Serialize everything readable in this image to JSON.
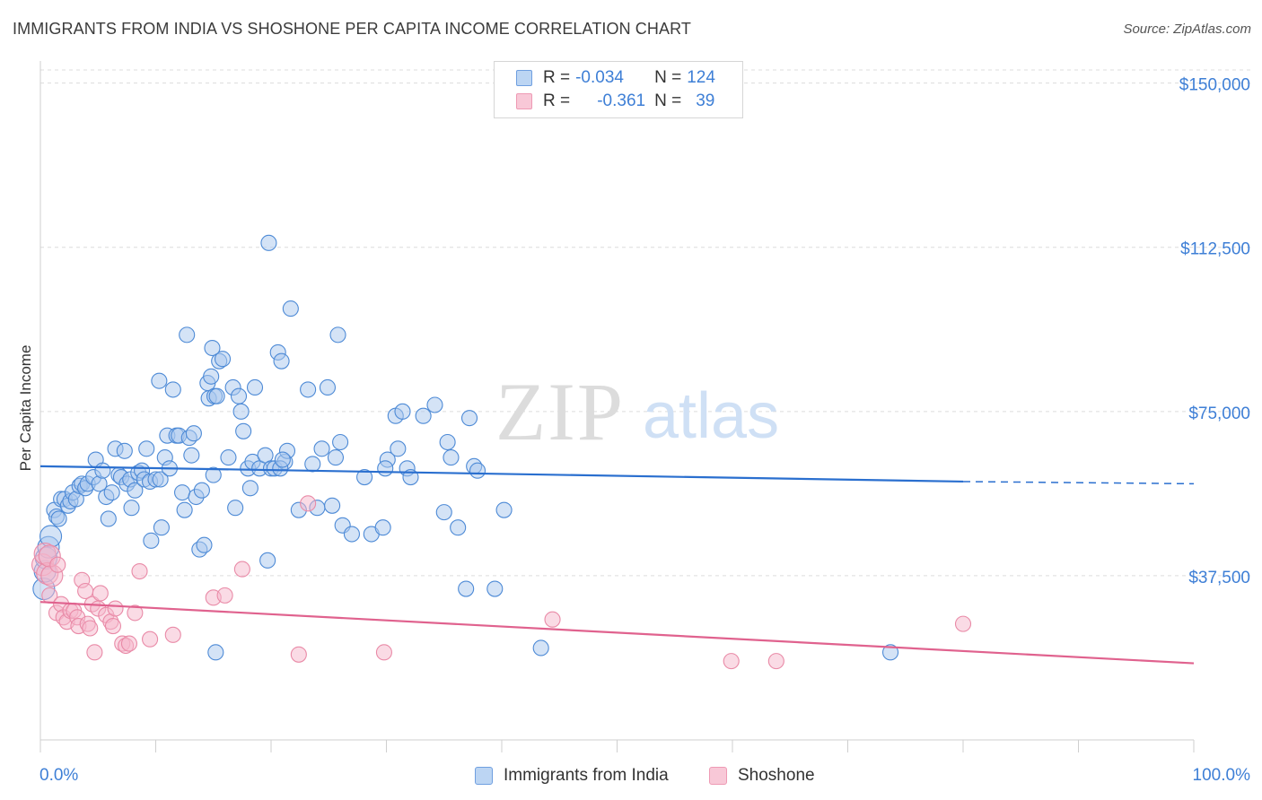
{
  "header": {
    "title": "IMMIGRANTS FROM INDIA VS SHOSHONE PER CAPITA INCOME CORRELATION CHART",
    "source": "Source: ZipAtlas.com"
  },
  "watermark": {
    "zip": "ZIP",
    "atlas": "atlas"
  },
  "legend": {
    "r_label": "R =",
    "n_label": "N =",
    "rows": [
      {
        "r": "-0.034",
        "n": "124"
      },
      {
        "r": "-0.361",
        "n": "39"
      }
    ]
  },
  "colors": {
    "india_fill": "#aac8ee",
    "india_stroke": "#4d8ad6",
    "india_line": "#2a6fcf",
    "shoshone_fill": "#f5b8cb",
    "shoshone_stroke": "#e98aa7",
    "shoshone_line": "#e0628e",
    "axis_text": "#3e7fd6"
  },
  "chart_data": {
    "type": "scatter",
    "title": "IMMIGRANTS FROM INDIA VS SHOSHONE PER CAPITA INCOME CORRELATION CHART",
    "xlabel": "",
    "ylabel": "Per Capita Income",
    "xlim": [
      0,
      100
    ],
    "ylim": [
      0,
      153000
    ],
    "x_tick_labels": [
      "0.0%",
      "100.0%"
    ],
    "y_ticks": [
      37500,
      75000,
      112500,
      150000
    ],
    "y_tick_labels": [
      "$37,500",
      "$75,000",
      "$112,500",
      "$150,000"
    ],
    "grid": "horizontal dashed",
    "legend_position": "top-center and bottom",
    "series": [
      {
        "name": "Immigrants from India",
        "trend": {
          "x": [
            0,
            80,
            100
          ],
          "y": [
            62500,
            59000,
            58500
          ],
          "dashed_from": 80
        },
        "points": [
          [
            0.3,
            34500
          ],
          [
            0.4,
            38500
          ],
          [
            0.5,
            41500
          ],
          [
            0.7,
            44000
          ],
          [
            0.9,
            46500
          ],
          [
            1.2,
            52500
          ],
          [
            1.4,
            51000
          ],
          [
            1.6,
            50500
          ],
          [
            1.8,
            55000
          ],
          [
            2.1,
            55000
          ],
          [
            2.4,
            53500
          ],
          [
            2.6,
            54500
          ],
          [
            2.8,
            56500
          ],
          [
            3.1,
            55000
          ],
          [
            3.4,
            58000
          ],
          [
            3.6,
            58500
          ],
          [
            3.9,
            57500
          ],
          [
            4.1,
            58500
          ],
          [
            4.6,
            60000
          ],
          [
            4.8,
            64000
          ],
          [
            5.1,
            58500
          ],
          [
            5.4,
            61500
          ],
          [
            5.7,
            55500
          ],
          [
            5.9,
            50500
          ],
          [
            6.2,
            56500
          ],
          [
            6.5,
            66500
          ],
          [
            6.8,
            60500
          ],
          [
            7.0,
            60000
          ],
          [
            7.3,
            66000
          ],
          [
            7.5,
            58500
          ],
          [
            7.8,
            59500
          ],
          [
            7.9,
            53000
          ],
          [
            8.2,
            57000
          ],
          [
            8.5,
            61000
          ],
          [
            8.8,
            61500
          ],
          [
            9.0,
            59500
          ],
          [
            9.2,
            66500
          ],
          [
            9.5,
            59000
          ],
          [
            9.6,
            45500
          ],
          [
            10.0,
            59500
          ],
          [
            10.3,
            82000
          ],
          [
            10.4,
            59500
          ],
          [
            10.5,
            48500
          ],
          [
            10.8,
            64500
          ],
          [
            11.0,
            69500
          ],
          [
            11.2,
            62000
          ],
          [
            11.5,
            80000
          ],
          [
            11.8,
            69500
          ],
          [
            12.0,
            69500
          ],
          [
            12.3,
            56500
          ],
          [
            12.5,
            52500
          ],
          [
            12.7,
            92500
          ],
          [
            12.9,
            69000
          ],
          [
            13.1,
            65000
          ],
          [
            13.3,
            70000
          ],
          [
            13.5,
            55500
          ],
          [
            13.8,
            43500
          ],
          [
            14.0,
            57000
          ],
          [
            14.2,
            44500
          ],
          [
            14.5,
            81500
          ],
          [
            14.6,
            78000
          ],
          [
            14.8,
            83000
          ],
          [
            14.9,
            89500
          ],
          [
            15.1,
            78500
          ],
          [
            15.3,
            78500
          ],
          [
            15.5,
            86500
          ],
          [
            15.8,
            87000
          ],
          [
            15.0,
            60500
          ],
          [
            15.2,
            20000
          ],
          [
            16.3,
            64500
          ],
          [
            16.7,
            80500
          ],
          [
            16.9,
            53000
          ],
          [
            17.2,
            78500
          ],
          [
            17.4,
            75000
          ],
          [
            17.6,
            70500
          ],
          [
            18.0,
            62000
          ],
          [
            18.2,
            57500
          ],
          [
            18.4,
            63500
          ],
          [
            18.6,
            80500
          ],
          [
            19.0,
            62000
          ],
          [
            19.5,
            65000
          ],
          [
            19.7,
            41000
          ],
          [
            19.8,
            113500
          ],
          [
            20.0,
            62000
          ],
          [
            20.6,
            88500
          ],
          [
            20.9,
            86500
          ],
          [
            20.3,
            62000
          ],
          [
            21.2,
            63500
          ],
          [
            21.4,
            66000
          ],
          [
            21.7,
            98500
          ],
          [
            22.4,
            52500
          ],
          [
            23.2,
            80000
          ],
          [
            23.6,
            63000
          ],
          [
            24.0,
            53000
          ],
          [
            24.4,
            66500
          ],
          [
            24.9,
            80500
          ],
          [
            25.3,
            53500
          ],
          [
            25.6,
            64500
          ],
          [
            25.8,
            92500
          ],
          [
            26.0,
            68000
          ],
          [
            26.2,
            49000
          ],
          [
            27.0,
            47000
          ],
          [
            28.1,
            60000
          ],
          [
            28.7,
            47000
          ],
          [
            29.7,
            48500
          ],
          [
            30.1,
            64000
          ],
          [
            30.8,
            74000
          ],
          [
            31.0,
            66500
          ],
          [
            31.4,
            75000
          ],
          [
            31.8,
            62000
          ],
          [
            32.1,
            60000
          ],
          [
            33.2,
            74000
          ],
          [
            34.2,
            76500
          ],
          [
            35.0,
            52000
          ],
          [
            35.3,
            68000
          ],
          [
            35.6,
            64500
          ],
          [
            36.2,
            48500
          ],
          [
            37.2,
            73500
          ],
          [
            37.6,
            62500
          ],
          [
            37.9,
            61500
          ],
          [
            36.9,
            34500
          ],
          [
            39.4,
            34500
          ],
          [
            40.2,
            52500
          ],
          [
            43.4,
            21000
          ],
          [
            73.7,
            20000
          ],
          [
            29.9,
            62000
          ],
          [
            20.8,
            62000
          ],
          [
            21.0,
            64000
          ]
        ]
      },
      {
        "name": "Shoshone",
        "trend": {
          "x": [
            0,
            100
          ],
          "y": [
            31500,
            17500
          ]
        },
        "points": [
          [
            0.2,
            40000
          ],
          [
            0.4,
            42500
          ],
          [
            0.6,
            38000
          ],
          [
            0.8,
            33000
          ],
          [
            1.0,
            37500
          ],
          [
            1.4,
            29000
          ],
          [
            1.8,
            31000
          ],
          [
            2.0,
            28000
          ],
          [
            2.3,
            27000
          ],
          [
            2.6,
            29500
          ],
          [
            2.9,
            29500
          ],
          [
            3.2,
            28000
          ],
          [
            3.3,
            26000
          ],
          [
            3.6,
            36500
          ],
          [
            3.9,
            34000
          ],
          [
            4.1,
            26500
          ],
          [
            4.3,
            25500
          ],
          [
            4.5,
            31000
          ],
          [
            4.7,
            20000
          ],
          [
            5.0,
            30000
          ],
          [
            5.2,
            33500
          ],
          [
            5.7,
            28500
          ],
          [
            6.1,
            27000
          ],
          [
            6.3,
            26000
          ],
          [
            6.5,
            30000
          ],
          [
            7.1,
            22000
          ],
          [
            7.4,
            21500
          ],
          [
            7.7,
            22000
          ],
          [
            8.2,
            29000
          ],
          [
            8.6,
            38500
          ],
          [
            9.5,
            23000
          ],
          [
            11.5,
            24000
          ],
          [
            15.0,
            32500
          ],
          [
            16.0,
            33000
          ],
          [
            17.5,
            39000
          ],
          [
            22.4,
            19500
          ],
          [
            23.2,
            54000
          ],
          [
            29.8,
            20000
          ],
          [
            44.4,
            27500
          ],
          [
            59.9,
            18000
          ],
          [
            63.8,
            18000
          ],
          [
            80.0,
            26500
          ],
          [
            0.8,
            42000
          ],
          [
            1.5,
            40000
          ]
        ]
      }
    ]
  },
  "bottom_legend": {
    "series1": "Immigrants from India",
    "series2": "Shoshone"
  }
}
